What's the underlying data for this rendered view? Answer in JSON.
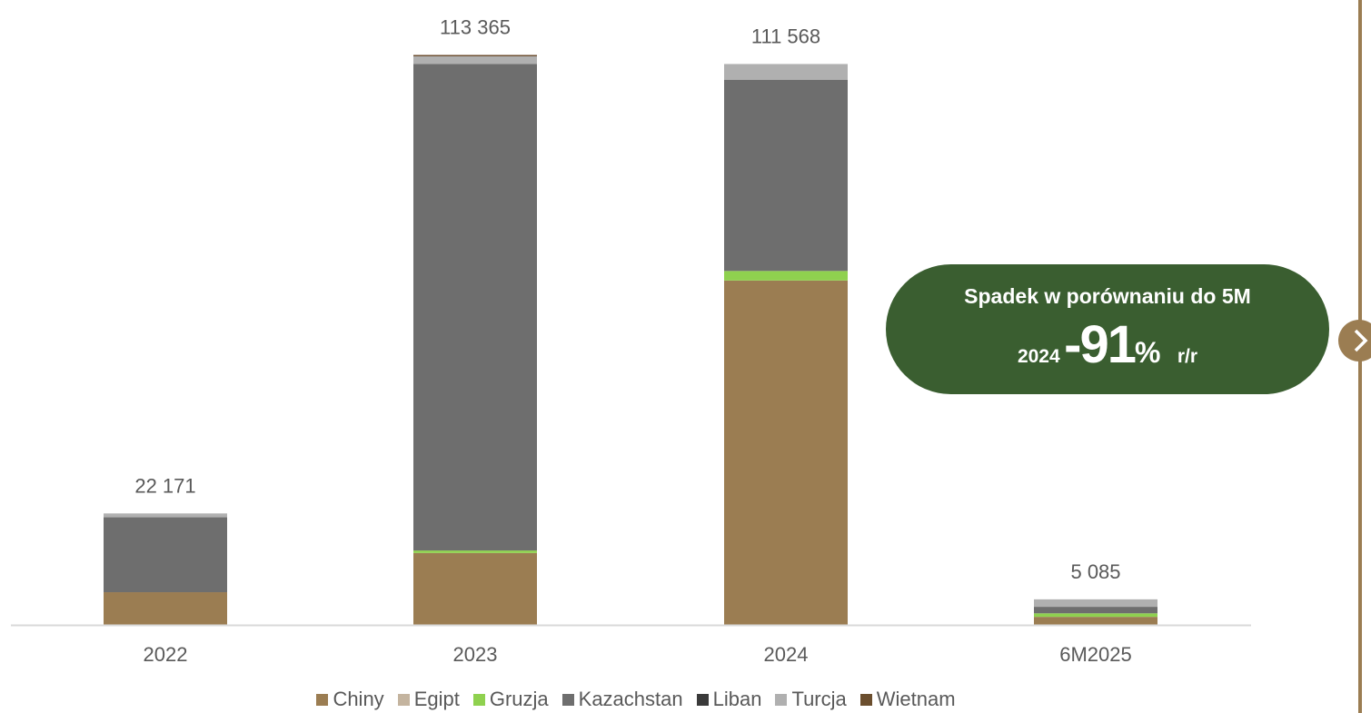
{
  "chart_data": {
    "type": "bar",
    "stacked": true,
    "categories": [
      "2022",
      "2023",
      "2024",
      "6M2025"
    ],
    "totals_labels": [
      "22 171",
      "113 365",
      "111 568",
      "5 085"
    ],
    "ylim": [
      0,
      120000
    ],
    "series": [
      {
        "name": "Chiny",
        "color": "#9b7d52",
        "values": [
          6500,
          14300,
          68500,
          1600
        ]
      },
      {
        "name": "Egipt",
        "color": "#c4b49f",
        "values": [
          0,
          0,
          0,
          0
        ]
      },
      {
        "name": "Gruzja",
        "color": "#8fd14f",
        "values": [
          0,
          500,
          1900,
          700
        ]
      },
      {
        "name": "Kazachstan",
        "color": "#6e6e6e",
        "values": [
          14900,
          96800,
          38000,
          1300
        ]
      },
      {
        "name": "Liban",
        "color": "#3a3a3a",
        "values": [
          0,
          0,
          0,
          0
        ]
      },
      {
        "name": "Turcja",
        "color": "#b0b0b0",
        "values": [
          771,
          1500,
          3168,
          1485
        ]
      },
      {
        "name": "Wietnam",
        "color": "#6b4e2e",
        "values": [
          0,
          265,
          0,
          0
        ]
      }
    ]
  },
  "callout": {
    "line1": "Spadek w porównaniu do 5M",
    "year": "2024",
    "value": "-91",
    "percent": "%",
    "suffix": "r/r"
  },
  "nav": {
    "icon": "chevron-right-icon"
  },
  "colors": {
    "callout_bg": "#3a5e30",
    "accent": "#9b7d52"
  }
}
